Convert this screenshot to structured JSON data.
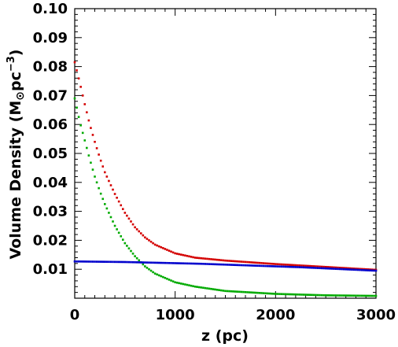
{
  "chart_data": {
    "type": "scatter",
    "xlabel": "z (pc)",
    "ylabel": {
      "prefix": "Volume Density (M",
      "sun_symbol": "⊙",
      "unit": "pc",
      "exponent": "−3",
      "suffix": ")"
    },
    "xlim": [
      0,
      3000
    ],
    "ylim": [
      0,
      0.1
    ],
    "xticks": [
      "0",
      "1000",
      "2000",
      "3000"
    ],
    "yticks": [
      "0.01",
      "0.02",
      "0.03",
      "0.04",
      "0.05",
      "0.06",
      "0.07",
      "0.08",
      "0.09",
      "0.10"
    ],
    "grid": false,
    "legend": "none",
    "series": [
      {
        "color": "#d40000",
        "x": [
          0,
          50,
          100,
          150,
          200,
          250,
          300,
          400,
          500,
          600,
          700,
          800,
          1000,
          1200,
          1500,
          2000,
          2500,
          3000
        ],
        "y": [
          0.0815,
          0.0745,
          0.067,
          0.06,
          0.054,
          0.0485,
          0.0435,
          0.036,
          0.0295,
          0.0245,
          0.021,
          0.0185,
          0.0155,
          0.014,
          0.013,
          0.0118,
          0.0108,
          0.0098
        ]
      },
      {
        "color": "#00aa00",
        "x": [
          0,
          50,
          100,
          150,
          200,
          250,
          300,
          400,
          500,
          600,
          700,
          800,
          1000,
          1200,
          1500,
          2000,
          2500,
          3000
        ],
        "y": [
          0.069,
          0.061,
          0.0545,
          0.048,
          0.042,
          0.037,
          0.0325,
          0.025,
          0.019,
          0.0145,
          0.011,
          0.0085,
          0.0055,
          0.004,
          0.0025,
          0.0015,
          0.001,
          0.0008
        ]
      },
      {
        "color": "#0000cc",
        "x": [
          0,
          250,
          500,
          750,
          1000,
          1250,
          1500,
          1750,
          2000,
          2250,
          2500,
          2750,
          3000
        ],
        "y": [
          0.0127,
          0.0126,
          0.0125,
          0.0123,
          0.0121,
          0.0119,
          0.0116,
          0.0113,
          0.011,
          0.0107,
          0.0103,
          0.0099,
          0.0095
        ]
      }
    ]
  }
}
